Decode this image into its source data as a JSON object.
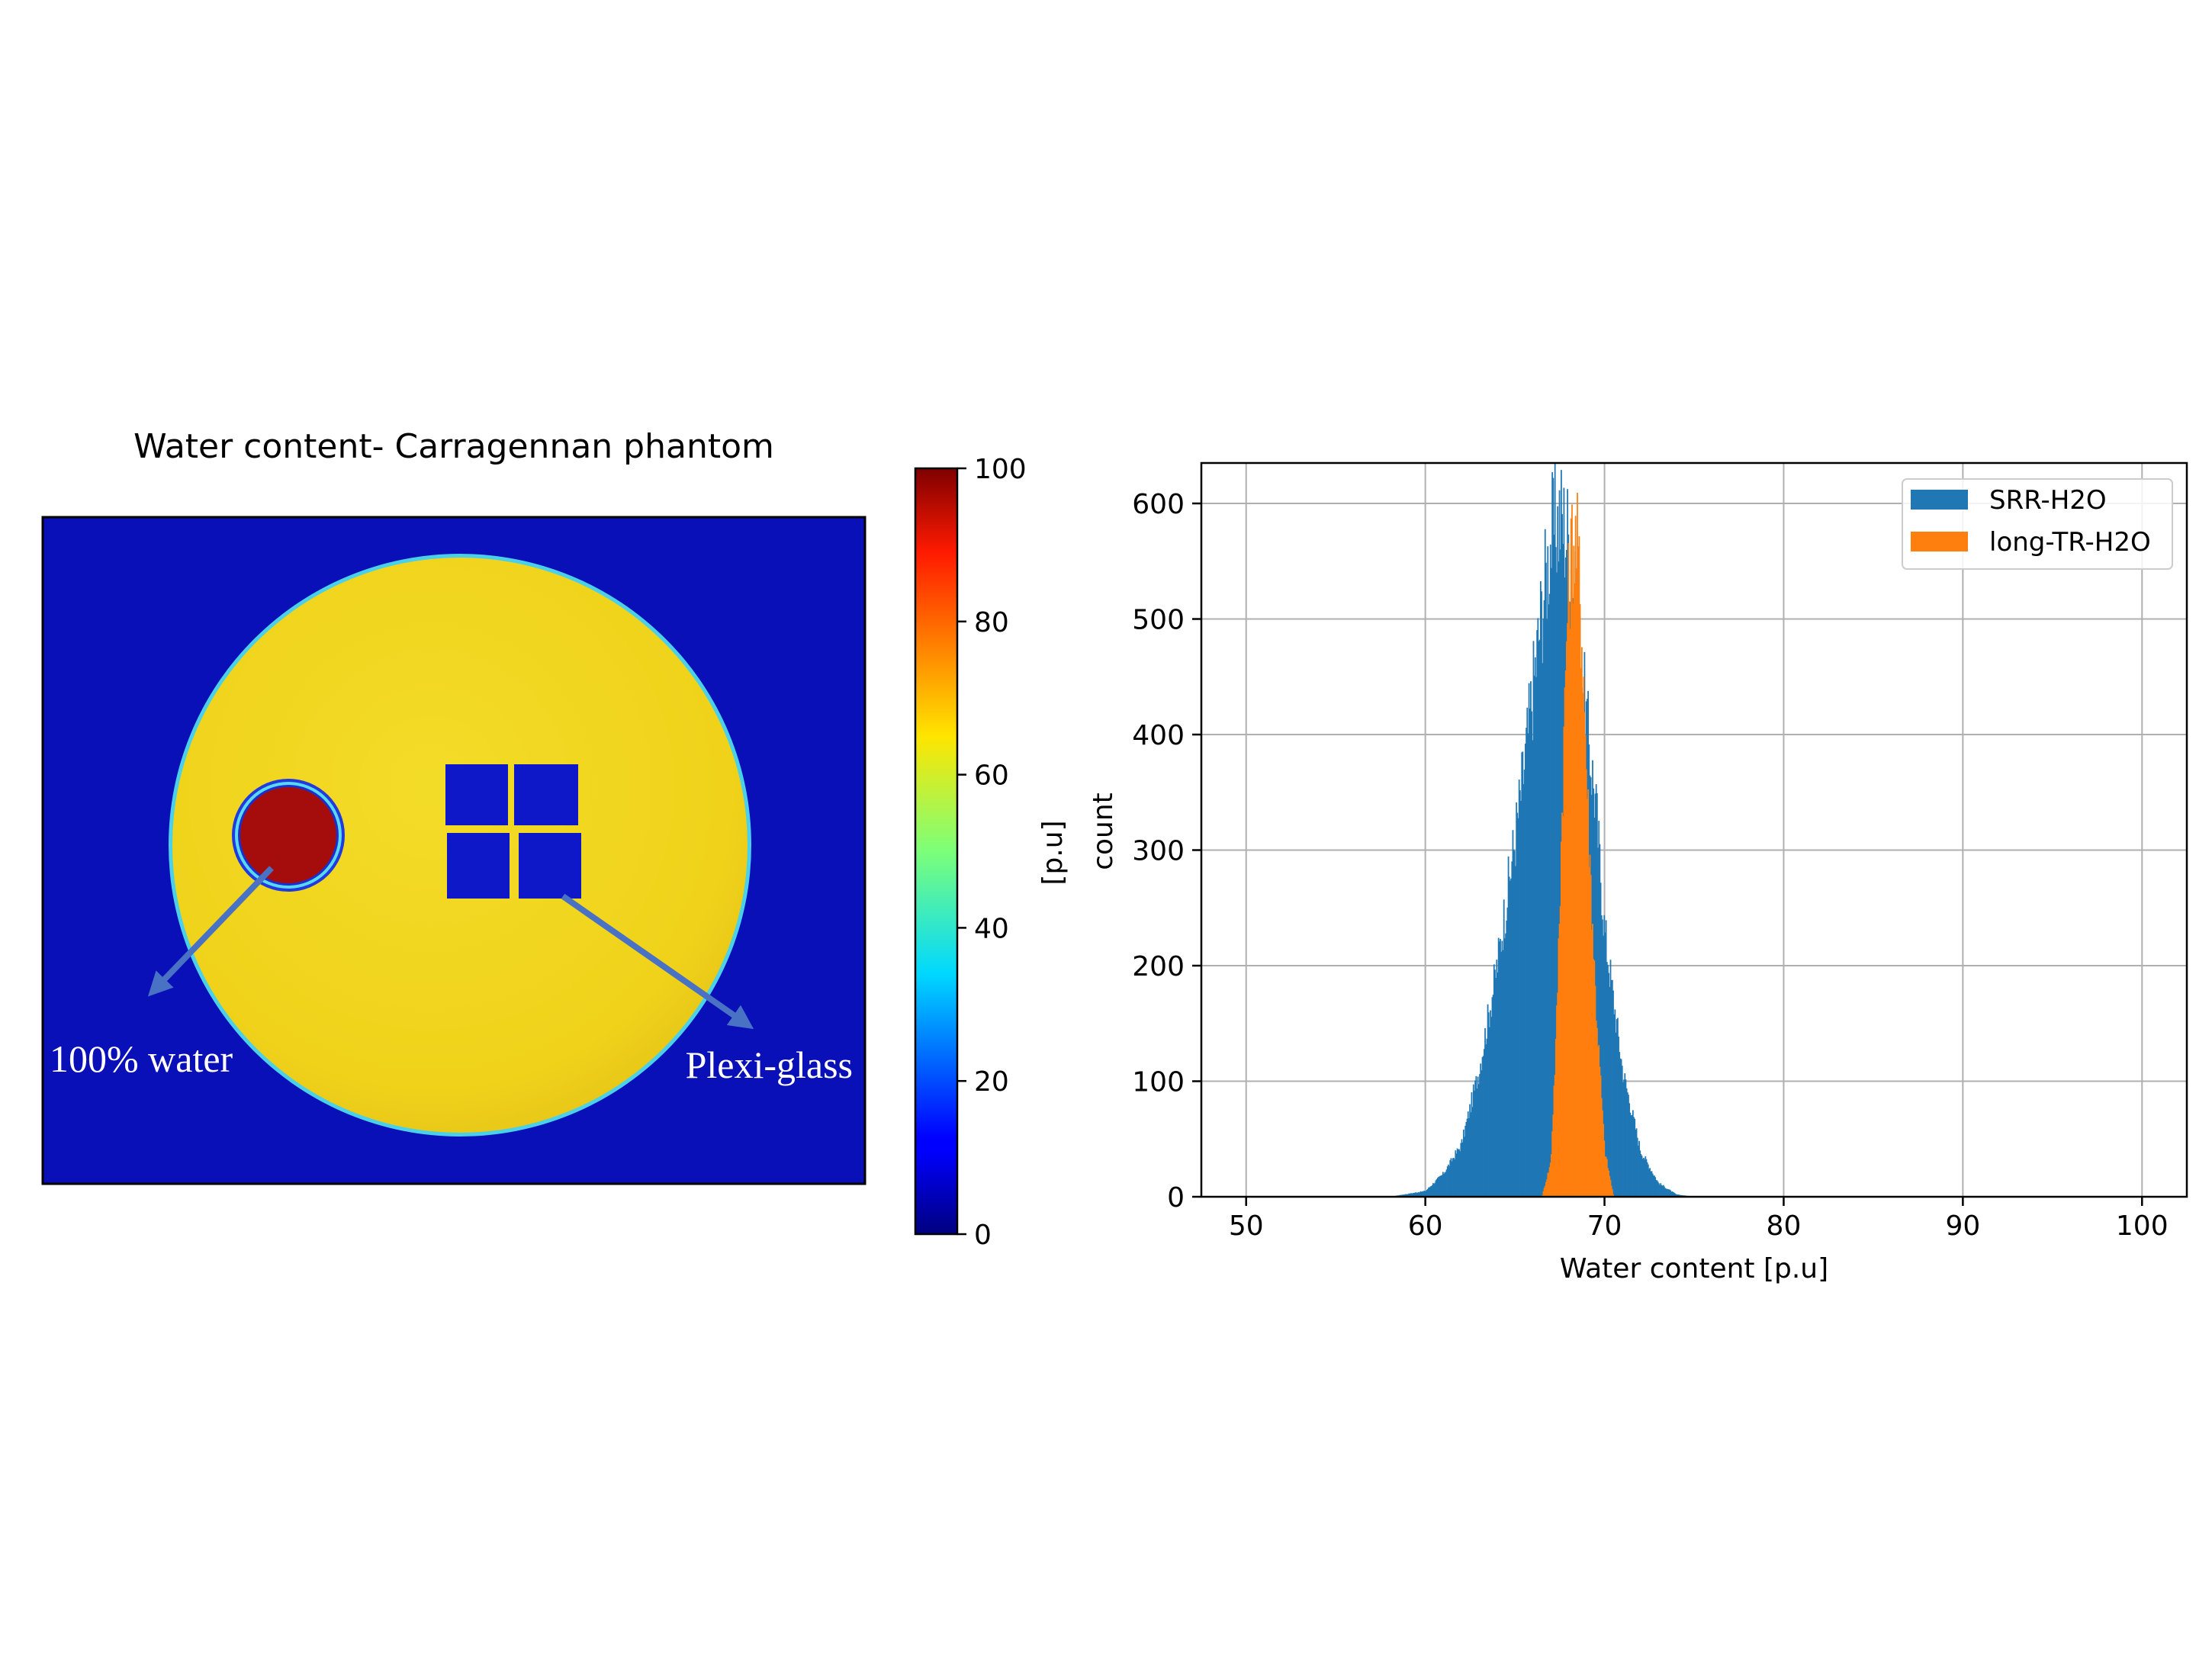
{
  "colormap_panel": {
    "title": "Water content- Carragennan phantom",
    "colorbar_label": "[p.u]",
    "colorbar_range": [
      0,
      100
    ],
    "colorbar_ticks": [
      "0",
      "20",
      "40",
      "60",
      "80",
      "100"
    ],
    "annotations": [
      "100% water",
      "Plexi-glass"
    ],
    "colors": {
      "background": "#0a10b8",
      "phantom": "#f2d81a",
      "water_vial": "#a50d0d",
      "arrow": "#4a72c4"
    }
  },
  "chart_data": [
    {
      "type": "image",
      "title": "Water content- Carragennan phantom",
      "colorbar": {
        "label": "[p.u]",
        "min": 0,
        "max": 100,
        "ticks": [
          0,
          20,
          40,
          60,
          80,
          100
        ],
        "colormap": "jet"
      },
      "regions": [
        {
          "name": "background",
          "value": 5
        },
        {
          "name": "phantom",
          "value": 68
        },
        {
          "name": "100% water",
          "value": 100
        },
        {
          "name": "Plexi-glass",
          "value": 5
        }
      ]
    },
    {
      "type": "histogram",
      "xlabel": "Water content [p.u]",
      "ylabel": "count",
      "xlim": [
        47.5,
        102.5
      ],
      "ylim": [
        0,
        635
      ],
      "xticks": [
        50,
        60,
        70,
        80,
        90,
        100
      ],
      "yticks": [
        0,
        100,
        200,
        300,
        400,
        500,
        600
      ],
      "grid": true,
      "legend_position": "top-right",
      "series": [
        {
          "name": "SRR-H2O",
          "color": "#1f77b4",
          "x": [
            58,
            60,
            61,
            62,
            63,
            64,
            65,
            65.5,
            66,
            66.5,
            67,
            67.5,
            68,
            68.5,
            69,
            69.5,
            70,
            71,
            72,
            73,
            74,
            75
          ],
          "values": [
            0,
            5,
            20,
            45,
            110,
            200,
            310,
            370,
            440,
            510,
            570,
            590,
            570,
            490,
            410,
            340,
            230,
            110,
            40,
            12,
            2,
            0
          ]
        },
        {
          "name": "long-TR-H2O",
          "color": "#ff7f0e",
          "x": [
            66.5,
            67,
            67.3,
            67.6,
            67.9,
            68.2,
            68.5,
            68.8,
            69.1,
            69.5,
            70,
            70.5
          ],
          "values": [
            0,
            30,
            140,
            320,
            500,
            570,
            560,
            460,
            320,
            170,
            40,
            0
          ]
        }
      ]
    }
  ]
}
